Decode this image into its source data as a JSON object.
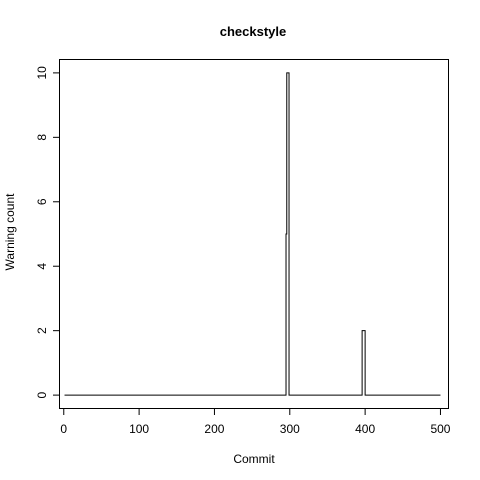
{
  "chart_data": {
    "type": "line",
    "title": "checkstyle",
    "xlabel": "Commit",
    "ylabel": "Warning count",
    "xlim": [
      -5,
      510
    ],
    "ylim": [
      -0.4,
      10.4
    ],
    "xticks": [
      0,
      100,
      200,
      300,
      400,
      500
    ],
    "yticks": [
      0,
      2,
      4,
      6,
      8,
      10
    ],
    "grid": false,
    "series": [
      {
        "step": "post",
        "color": "#000000",
        "x": [
          1,
          295,
          296,
          297,
          298,
          299,
          396,
          400,
          401,
          500
        ],
        "y": [
          0,
          5,
          10,
          10,
          10,
          0,
          2,
          0,
          0,
          0
        ]
      }
    ]
  }
}
